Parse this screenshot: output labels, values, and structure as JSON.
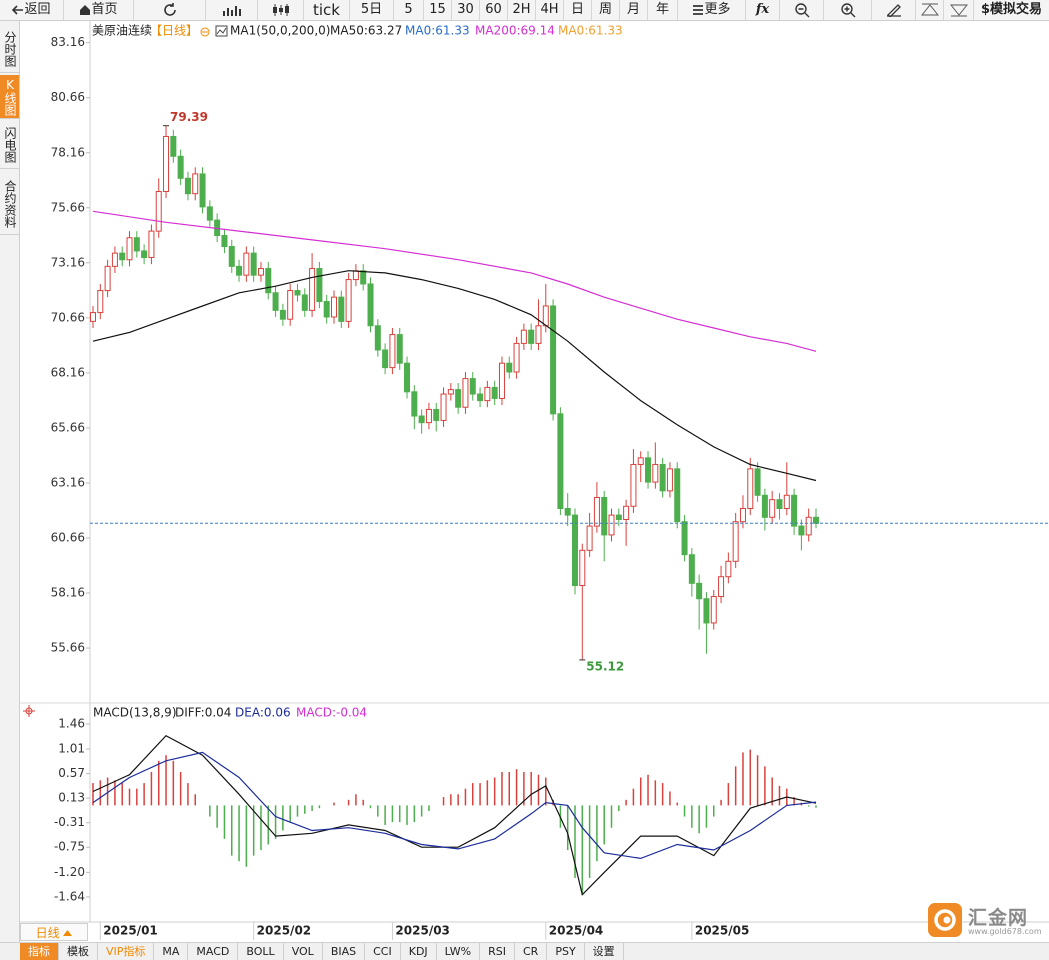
{
  "toolbar": [
    "返回",
    "首页",
    "tick",
    "5日",
    "5",
    "15",
    "30",
    "60",
    "2H",
    "4H",
    "日",
    "周",
    "月",
    "年",
    "更多",
    "fx",
    "$模拟交易"
  ],
  "side_tabs": [
    "分时图",
    "K线图",
    "闪电图",
    "合约资料"
  ],
  "period": "日线",
  "bottom_tabs": [
    "指标",
    "模板",
    "VIP指标",
    "MA",
    "MACD",
    "BOLL",
    "VOL",
    "BIAS",
    "CCI",
    "KDJ",
    "LW%",
    "RSI",
    "CR",
    "PSY",
    "设置"
  ],
  "logo": {
    "name": "汇金网",
    "url": "www.gold678.com"
  },
  "chart_data": [
    {
      "type": "candlestick",
      "legend": [
        {
          "text": "美原油连续",
          "color": "#222222"
        },
        {
          "text": "【日线】",
          "color": "#f08a00"
        },
        {
          "text": "MA1(50,0,200,0)",
          "color": "#222222"
        },
        {
          "text": "MA50:63.27",
          "color": "#222222"
        },
        {
          "text": "MA0:61.33",
          "color": "#2a6cc9"
        },
        {
          "text": "MA200:69.14",
          "color": "#d42ed4"
        },
        {
          "text": "MA0:61.33",
          "color": "#f0a030"
        }
      ],
      "up_color": "#d9413c",
      "down_color": "#4cae4c",
      "ohlc": [
        [
          70.5,
          71.2,
          70.2,
          70.9
        ],
        [
          70.9,
          72.2,
          70.6,
          71.9
        ],
        [
          71.9,
          73.3,
          71.6,
          73.0
        ],
        [
          73.0,
          73.9,
          72.7,
          73.6
        ],
        [
          73.6,
          73.9,
          73.0,
          73.3
        ],
        [
          73.3,
          74.6,
          73.0,
          74.3
        ],
        [
          74.3,
          74.6,
          73.4,
          73.7
        ],
        [
          73.7,
          74.0,
          73.1,
          73.4
        ],
        [
          73.4,
          74.9,
          73.1,
          74.6
        ],
        [
          74.6,
          77.0,
          74.3,
          76.4
        ],
        [
          76.4,
          79.39,
          76.1,
          78.9
        ],
        [
          78.9,
          79.2,
          77.7,
          78.0
        ],
        [
          78.0,
          78.3,
          76.7,
          77.0
        ],
        [
          77.0,
          77.3,
          76.0,
          76.3
        ],
        [
          76.3,
          77.5,
          76.0,
          77.2
        ],
        [
          77.2,
          77.5,
          75.4,
          75.7
        ],
        [
          75.7,
          76.0,
          74.8,
          75.1
        ],
        [
          75.1,
          75.4,
          74.1,
          74.4
        ],
        [
          74.4,
          74.7,
          73.6,
          73.9
        ],
        [
          73.9,
          74.2,
          72.7,
          73.0
        ],
        [
          73.0,
          73.3,
          72.3,
          72.6
        ],
        [
          72.6,
          73.9,
          72.3,
          73.6
        ],
        [
          73.6,
          73.9,
          72.3,
          72.6
        ],
        [
          72.6,
          73.2,
          72.3,
          72.9
        ],
        [
          72.9,
          73.2,
          71.5,
          71.8
        ],
        [
          71.8,
          72.1,
          70.7,
          71.0
        ],
        [
          71.0,
          71.3,
          70.3,
          70.6
        ],
        [
          70.6,
          72.2,
          70.3,
          71.9
        ],
        [
          71.9,
          72.2,
          71.4,
          71.7
        ],
        [
          71.7,
          72.0,
          70.7,
          71.0
        ],
        [
          71.0,
          73.6,
          70.7,
          72.9
        ],
        [
          72.9,
          73.2,
          71.1,
          71.4
        ],
        [
          71.4,
          71.7,
          70.4,
          70.7
        ],
        [
          70.7,
          71.9,
          70.4,
          71.6
        ],
        [
          71.6,
          71.9,
          70.2,
          70.5
        ],
        [
          70.5,
          72.7,
          70.2,
          72.4
        ],
        [
          72.4,
          73.1,
          72.1,
          72.8
        ],
        [
          72.8,
          73.1,
          71.9,
          72.2
        ],
        [
          72.2,
          72.5,
          70.0,
          70.3
        ],
        [
          70.3,
          70.6,
          68.9,
          69.2
        ],
        [
          69.2,
          69.5,
          68.1,
          68.4
        ],
        [
          68.4,
          70.2,
          68.1,
          69.9
        ],
        [
          69.9,
          70.2,
          68.3,
          68.6
        ],
        [
          68.6,
          68.9,
          67.0,
          67.3
        ],
        [
          67.3,
          67.6,
          65.6,
          66.2
        ],
        [
          66.2,
          66.5,
          65.4,
          65.9
        ],
        [
          65.9,
          66.8,
          65.6,
          66.5
        ],
        [
          66.5,
          66.8,
          65.5,
          66.0
        ],
        [
          66.0,
          67.5,
          65.7,
          67.2
        ],
        [
          67.2,
          67.7,
          66.9,
          67.4
        ],
        [
          67.4,
          67.7,
          66.3,
          66.6
        ],
        [
          66.6,
          68.2,
          66.3,
          67.9
        ],
        [
          67.9,
          68.2,
          66.9,
          67.2
        ],
        [
          67.2,
          67.5,
          66.6,
          66.9
        ],
        [
          66.9,
          67.8,
          66.6,
          67.5
        ],
        [
          67.5,
          67.8,
          66.7,
          67.0
        ],
        [
          67.0,
          68.9,
          66.7,
          68.6
        ],
        [
          68.6,
          68.9,
          67.9,
          68.2
        ],
        [
          68.2,
          69.8,
          67.9,
          69.5
        ],
        [
          69.5,
          70.4,
          69.2,
          70.1
        ],
        [
          70.1,
          70.4,
          69.2,
          69.5
        ],
        [
          69.5,
          71.5,
          69.2,
          70.3
        ],
        [
          70.3,
          72.2,
          70.0,
          71.2
        ],
        [
          71.2,
          71.5,
          66.0,
          66.3
        ],
        [
          66.3,
          66.6,
          61.7,
          62.0
        ],
        [
          62.0,
          62.7,
          61.2,
          61.7
        ],
        [
          61.7,
          62.0,
          58.1,
          58.5
        ],
        [
          58.5,
          60.4,
          55.12,
          60.1
        ],
        [
          60.1,
          61.8,
          59.8,
          61.2
        ],
        [
          61.2,
          63.2,
          60.9,
          62.5
        ],
        [
          62.5,
          62.8,
          59.6,
          60.8
        ],
        [
          60.8,
          62.0,
          60.5,
          61.7
        ],
        [
          61.7,
          62.0,
          61.2,
          61.5
        ],
        [
          61.5,
          62.4,
          60.3,
          62.1
        ],
        [
          62.1,
          64.7,
          61.8,
          64.0
        ],
        [
          64.0,
          64.6,
          63.2,
          64.3
        ],
        [
          64.3,
          64.6,
          62.9,
          63.2
        ],
        [
          63.2,
          65.0,
          62.9,
          64.0
        ],
        [
          64.0,
          64.3,
          62.5,
          62.8
        ],
        [
          62.8,
          64.1,
          62.5,
          63.8
        ],
        [
          63.8,
          64.1,
          61.1,
          61.4
        ],
        [
          61.4,
          61.7,
          59.6,
          59.9
        ],
        [
          59.9,
          60.2,
          58.0,
          58.6
        ],
        [
          58.6,
          59.0,
          56.5,
          57.9
        ],
        [
          57.9,
          58.2,
          55.4,
          56.8
        ],
        [
          56.8,
          58.3,
          56.5,
          58.0
        ],
        [
          58.0,
          59.4,
          57.7,
          58.9
        ],
        [
          58.9,
          60.0,
          58.6,
          59.6
        ],
        [
          59.6,
          61.8,
          59.3,
          61.4
        ],
        [
          61.4,
          62.6,
          61.1,
          62.0
        ],
        [
          62.0,
          64.3,
          61.7,
          63.8
        ],
        [
          63.8,
          64.1,
          62.3,
          62.6
        ],
        [
          62.6,
          62.9,
          61.0,
          61.6
        ],
        [
          61.6,
          62.8,
          61.3,
          62.4
        ],
        [
          62.4,
          62.7,
          61.5,
          62.0
        ],
        [
          62.0,
          64.1,
          61.7,
          62.6
        ],
        [
          62.6,
          62.9,
          60.8,
          61.2
        ],
        [
          61.2,
          61.5,
          60.1,
          60.8
        ],
        [
          60.8,
          62.0,
          60.5,
          61.6
        ],
        [
          61.6,
          62.0,
          61.1,
          61.33
        ]
      ],
      "series": [
        {
          "color": "#111111",
          "x": [
            0,
            5,
            10,
            15,
            20,
            25,
            30,
            35,
            40,
            45,
            50,
            55,
            60,
            65,
            70,
            75,
            80,
            85,
            90,
            95,
            99
          ],
          "values": [
            69.6,
            70.0,
            70.6,
            71.2,
            71.8,
            72.1,
            72.5,
            72.8,
            72.7,
            72.4,
            72.0,
            71.5,
            70.8,
            69.6,
            68.2,
            66.9,
            65.8,
            64.8,
            64.0,
            63.6,
            63.27
          ]
        },
        {
          "color": "#d42ed4",
          "x": [
            0,
            10,
            20,
            30,
            40,
            50,
            60,
            65,
            70,
            75,
            80,
            85,
            90,
            95,
            99
          ],
          "values": [
            75.5,
            75.0,
            74.6,
            74.2,
            73.8,
            73.3,
            72.7,
            72.2,
            71.6,
            71.1,
            70.6,
            70.2,
            69.8,
            69.5,
            69.14
          ]
        }
      ],
      "price_line": 61.33,
      "price_line_color": "#3a7fc1",
      "xlim": [
        0,
        99
      ],
      "xticks": [
        {
          "value": 1,
          "label": "2025/01"
        },
        {
          "value": 22,
          "label": "2025/02"
        },
        {
          "value": 41,
          "label": "2025/03"
        },
        {
          "value": 62,
          "label": "2025/04"
        },
        {
          "value": 82,
          "label": "2025/05"
        }
      ],
      "ylim": [
        53.3,
        84.1
      ],
      "yticks": [
        83.16,
        80.66,
        78.16,
        75.66,
        73.16,
        70.66,
        68.16,
        65.66,
        63.16,
        60.66,
        58.16,
        55.66
      ]
    },
    {
      "type": "macd",
      "legend": [
        {
          "text": "MACD(13,8,9)",
          "color": "#222222"
        },
        {
          "text": "DIFF:0.04",
          "color": "#222222"
        },
        {
          "text": "DEA:0.06",
          "color": "#1c2c9c"
        },
        {
          "text": "MACD:-0.04",
          "color": "#d42ed4"
        }
      ],
      "up_color": "#d9413c",
      "down_color": "#4cae4c",
      "histogram": [
        0.4,
        0.45,
        0.5,
        0.45,
        0.4,
        0.3,
        0.3,
        0.4,
        0.6,
        0.8,
        0.9,
        0.8,
        0.6,
        0.4,
        0.2,
        0.0,
        -0.2,
        -0.4,
        -0.6,
        -0.9,
        -1.0,
        -1.1,
        -0.9,
        -0.8,
        -0.7,
        -0.6,
        -0.45,
        -0.3,
        -0.2,
        -0.15,
        -0.1,
        -0.05,
        0.0,
        0.05,
        0.0,
        0.1,
        0.2,
        0.1,
        -0.05,
        -0.2,
        -0.35,
        -0.3,
        -0.3,
        -0.35,
        -0.3,
        -0.2,
        -0.1,
        0.0,
        0.15,
        0.2,
        0.2,
        0.3,
        0.4,
        0.4,
        0.45,
        0.5,
        0.6,
        0.6,
        0.65,
        0.6,
        0.6,
        0.55,
        0.5,
        0.1,
        -0.4,
        -0.8,
        -1.3,
        -1.6,
        -1.3,
        -1.0,
        -0.7,
        -0.4,
        -0.1,
        0.1,
        0.3,
        0.5,
        0.55,
        0.45,
        0.4,
        0.25,
        0.05,
        -0.2,
        -0.4,
        -0.5,
        -0.4,
        -0.2,
        0.1,
        0.4,
        0.7,
        0.95,
        1.0,
        0.9,
        0.7,
        0.5,
        0.35,
        0.3,
        0.15,
        0.05,
        -0.02,
        -0.04
      ],
      "series": [
        {
          "color": "#111111",
          "x": [
            0,
            5,
            10,
            15,
            20,
            25,
            30,
            35,
            40,
            45,
            50,
            55,
            60,
            62,
            65,
            67,
            70,
            75,
            80,
            85,
            90,
            95,
            99
          ],
          "values": [
            0.25,
            0.55,
            1.25,
            0.9,
            0.2,
            -0.55,
            -0.5,
            -0.35,
            -0.45,
            -0.75,
            -0.75,
            -0.4,
            0.2,
            0.35,
            -0.5,
            -1.6,
            -1.2,
            -0.55,
            -0.55,
            -0.9,
            -0.05,
            0.15,
            0.04
          ]
        },
        {
          "color": "#1c2c9c",
          "x": [
            0,
            5,
            10,
            15,
            20,
            25,
            30,
            35,
            40,
            45,
            50,
            55,
            60,
            62,
            65,
            67,
            70,
            75,
            80,
            85,
            90,
            95,
            99
          ],
          "values": [
            0.05,
            0.5,
            0.8,
            0.95,
            0.5,
            -0.2,
            -0.45,
            -0.4,
            -0.5,
            -0.7,
            -0.78,
            -0.6,
            -0.15,
            0.05,
            0.0,
            -0.4,
            -0.85,
            -0.95,
            -0.7,
            -0.8,
            -0.45,
            0.0,
            0.06
          ]
        }
      ],
      "xlim": [
        0,
        99
      ],
      "ylim": [
        -2.09,
        1.8
      ],
      "yticks": [
        1.46,
        1.01,
        0.57,
        0.13,
        -0.31,
        -0.75,
        {
          "value": -1.2,
          "label": "-1.20"
        },
        -1.64
      ]
    }
  ]
}
